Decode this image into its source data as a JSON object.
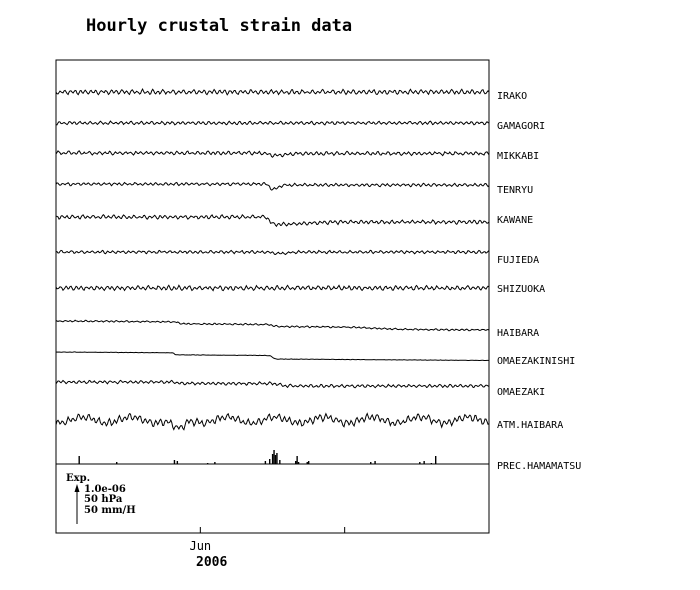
{
  "chart_data": {
    "type": "line",
    "title": "Hourly crustal strain data",
    "x_ticks": [
      {
        "value": 0,
        "label": ""
      },
      {
        "value": 1,
        "label": "Jun"
      },
      {
        "value": 2,
        "label": ""
      }
    ],
    "xlim": [
      0,
      3
    ],
    "year_label": "2006",
    "series": [
      {
        "name": "IRAKO",
        "kind": "wavy",
        "amp": 1.6,
        "noise": 0.6,
        "steps": []
      },
      {
        "name": "GAMAGORI",
        "kind": "wavy",
        "amp": 1.1,
        "noise": 0.4,
        "steps": []
      },
      {
        "name": "MIKKABI",
        "kind": "wavy",
        "amp": 1.2,
        "noise": 0.5,
        "steps": [
          {
            "t": 1.47,
            "d": 2.5,
            "w": 0.08
          },
          {
            "t": 1.6,
            "d": -2,
            "w": 0.1
          }
        ]
      },
      {
        "name": "TENRYU",
        "kind": "wavy",
        "amp": 1.0,
        "noise": 0.4,
        "steps": [
          {
            "t": 1.48,
            "d": 6,
            "w": 0.03
          },
          {
            "t": 1.54,
            "d": -5,
            "w": 0.06
          }
        ]
      },
      {
        "name": "KAWANE",
        "kind": "wavy",
        "amp": 1.3,
        "noise": 0.5,
        "steps": [
          {
            "t": 1.48,
            "d": 8,
            "w": 0.04
          },
          {
            "t": 1.7,
            "d": -3,
            "w": 0.4
          }
        ]
      },
      {
        "name": "FUJIEDA",
        "kind": "wavy",
        "amp": 1.0,
        "noise": 0.4,
        "steps": [
          {
            "t": 1.5,
            "d": 1.5,
            "w": 0.06
          },
          {
            "t": 1.62,
            "d": -1.5,
            "w": 0.08
          }
        ]
      },
      {
        "name": "SHIZUOKA",
        "kind": "wavy",
        "amp": 1.5,
        "noise": 0.6,
        "steps": []
      },
      {
        "name": "HAIBARA",
        "kind": "trend",
        "amp": 0.5,
        "noise": 0.3,
        "steps": [
          {
            "t": 0.85,
            "d": 2,
            "w": 0.05
          },
          {
            "t": 1.5,
            "d": 2,
            "w": 0.05
          },
          {
            "t": 2.2,
            "d": 2,
            "w": 0.3
          }
        ]
      },
      {
        "name": "OMAEZAKINISHI",
        "kind": "trend",
        "amp": 0.1,
        "noise": 0.1,
        "steps": [
          {
            "t": 0.82,
            "d": 2,
            "w": 0.02
          },
          {
            "t": 1.5,
            "d": 3.5,
            "w": 0.03
          }
        ]
      },
      {
        "name": "OMAEZAKI",
        "kind": "wavy",
        "amp": 1.0,
        "noise": 0.4,
        "steps": [
          {
            "t": 0.85,
            "d": 1.5,
            "w": 0.05
          },
          {
            "t": 1.55,
            "d": 2.5,
            "w": 0.08
          }
        ]
      },
      {
        "name": "ATM.HAIBARA",
        "kind": "pressure",
        "amp": 2.5,
        "noise": 0.8,
        "dips": [
          {
            "t": 0.85,
            "d": 11,
            "w": 0.06
          }
        ]
      },
      {
        "name": "PREC.HAMAMATSU",
        "kind": "precip",
        "events": [
          [
            0.16,
            8
          ],
          [
            0.42,
            2
          ],
          [
            0.82,
            4
          ],
          [
            0.84,
            3
          ],
          [
            1.05,
            1
          ],
          [
            1.1,
            2
          ],
          [
            1.45,
            3
          ],
          [
            1.48,
            5
          ],
          [
            1.5,
            10
          ],
          [
            1.51,
            14
          ],
          [
            1.52,
            9
          ],
          [
            1.53,
            11
          ],
          [
            1.55,
            4
          ],
          [
            1.66,
            3
          ],
          [
            1.67,
            8
          ],
          [
            1.68,
            2
          ],
          [
            1.74,
            2
          ],
          [
            1.75,
            3
          ],
          [
            2.18,
            2
          ],
          [
            2.21,
            3
          ],
          [
            2.52,
            2
          ],
          [
            2.55,
            3
          ],
          [
            2.6,
            1
          ],
          [
            2.63,
            8
          ]
        ]
      }
    ],
    "scale_legend": {
      "label": "Exp.",
      "values": [
        "1.0e-06",
        "50 hPa",
        "50 mm/H"
      ]
    }
  }
}
